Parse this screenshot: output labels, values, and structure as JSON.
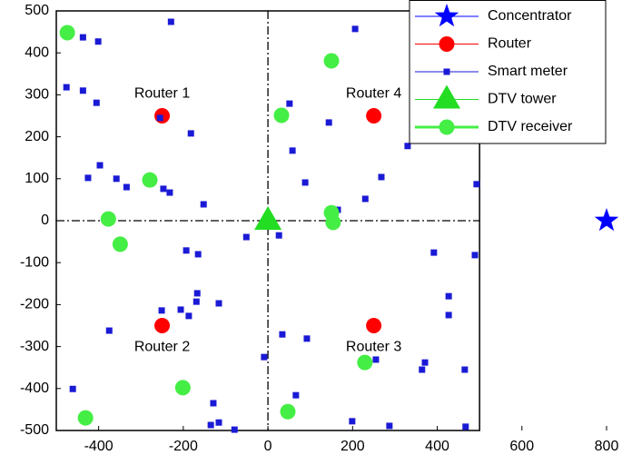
{
  "chart_data": {
    "type": "scatter",
    "xlim": [
      -500,
      800
    ],
    "ylim": [
      -500,
      500
    ],
    "xticks": [
      -400,
      -200,
      0,
      200,
      400,
      600,
      800
    ],
    "yticks": [
      -500,
      -400,
      -300,
      -200,
      -100,
      0,
      100,
      200,
      300,
      400,
      500
    ],
    "plot_box": {
      "xlim": [
        -500,
        500
      ],
      "ylim": [
        -500,
        500
      ]
    },
    "axis_lines": [
      0,
      0
    ],
    "legend": "upper right",
    "series": [
      {
        "name": "Concentrator",
        "color": "#0000ff",
        "marker": "star",
        "x": [
          800
        ],
        "values": [
          0
        ]
      },
      {
        "name": "Router",
        "color": "#ff0000",
        "marker": "circle",
        "x": [
          -250,
          250,
          -250,
          250
        ],
        "values": [
          250,
          250,
          -250,
          -250
        ],
        "point_labels": [
          "Router 1",
          "Router 4",
          "Router 2",
          "Router 3"
        ]
      },
      {
        "name": "Smart meter",
        "color": "#1a1ad6",
        "marker": "square",
        "x": [
          -229,
          -437,
          -401,
          -476,
          -437,
          -405,
          -255,
          51,
          144,
          206,
          -182,
          58,
          -397,
          -425,
          -358,
          -334,
          -247,
          -232,
          -152,
          -51,
          26,
          88,
          165,
          230,
          268,
          330,
          493,
          489,
          392,
          427,
          427,
          -251,
          -167,
          -206,
          -187,
          -116,
          34,
          92,
          -375,
          -461,
          -9,
          66,
          371,
          364,
          255,
          465,
          -129,
          -116,
          -135,
          -79,
          199,
          287,
          467,
          -193,
          -165,
          -169
        ],
        "values": [
          474,
          437,
          427,
          318,
          310,
          281,
          245,
          279,
          234,
          457,
          208,
          167,
          132,
          102,
          100,
          80,
          76,
          67,
          39,
          -39,
          -35,
          91,
          26,
          52,
          104,
          178,
          87,
          -82,
          -76,
          -180,
          -225,
          -214,
          -173,
          -212,
          -227,
          -197,
          -271,
          -281,
          -262,
          -401,
          -325,
          -416,
          -338,
          -355,
          -331,
          -355,
          -435,
          -481,
          -487,
          -498,
          -478,
          -489,
          -491,
          -71,
          -80,
          -193
        ]
      },
      {
        "name": "DTV tower",
        "color": "#22dd22",
        "marker": "triangle",
        "x": [
          0
        ],
        "values": [
          0
        ]
      },
      {
        "name": "DTV receiver",
        "color": "#44ee44",
        "marker": "circle",
        "line_width": 3,
        "x": [
          -474,
          150,
          32,
          -279,
          -377,
          -349,
          150,
          154,
          229,
          -201,
          47,
          -431
        ],
        "values": [
          448,
          381,
          251,
          97,
          4,
          -56,
          19,
          -4,
          -338,
          -398,
          -455,
          -470
        ]
      }
    ]
  }
}
